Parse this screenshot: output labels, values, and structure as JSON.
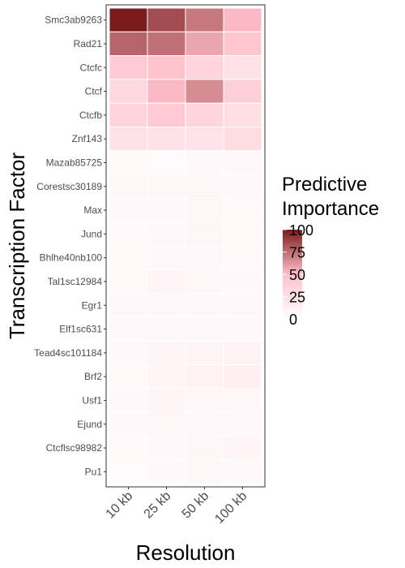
{
  "chart_data": {
    "type": "heatmap",
    "xlabel": "Resolution",
    "ylabel": "Transcription Factor",
    "x_categories": [
      "10 kb",
      "25 kb",
      "50 kb",
      "100 kb"
    ],
    "y_categories": [
      "Smc3ab9263",
      "Rad21",
      "Ctcfc",
      "Ctcf",
      "Ctcfb",
      "Znf143",
      "Mazab85725",
      "Corestsc30189",
      "Max",
      "Jund",
      "Bhlhe40nb100",
      "Tal1sc12984",
      "Egr1",
      "Elf1sc631",
      "Tead4sc101184",
      "Brf2",
      "Usf1",
      "Ejund",
      "Ctcflsc98982",
      "Pu1"
    ],
    "values": [
      [
        100,
        85,
        72,
        52
      ],
      [
        78,
        74,
        58,
        45
      ],
      [
        42,
        48,
        35,
        24
      ],
      [
        32,
        52,
        66,
        38
      ],
      [
        34,
        42,
        34,
        26
      ],
      [
        24,
        24,
        22,
        28
      ],
      [
        5,
        3,
        6,
        6
      ],
      [
        7,
        7,
        7,
        6
      ],
      [
        6,
        6,
        7,
        5
      ],
      [
        5,
        6,
        7,
        5
      ],
      [
        5,
        6,
        6,
        5
      ],
      [
        5,
        8,
        7,
        6
      ],
      [
        6,
        6,
        6,
        6
      ],
      [
        6,
        6,
        6,
        6
      ],
      [
        6,
        8,
        8,
        10
      ],
      [
        5,
        8,
        11,
        13
      ],
      [
        6,
        8,
        7,
        7
      ],
      [
        6,
        7,
        6,
        6
      ],
      [
        5,
        6,
        7,
        9
      ],
      [
        4,
        6,
        7,
        6
      ]
    ],
    "color_scale": {
      "title_lines": [
        "Predictive",
        "Importance"
      ],
      "min": 0,
      "max": 100,
      "breaks": [
        100,
        75,
        50,
        25,
        0
      ],
      "low_color": "#ffffff",
      "mid_color": "#ffc0cb",
      "high_color": "#7b1c1c"
    },
    "grid": true,
    "legend_position": "right"
  }
}
